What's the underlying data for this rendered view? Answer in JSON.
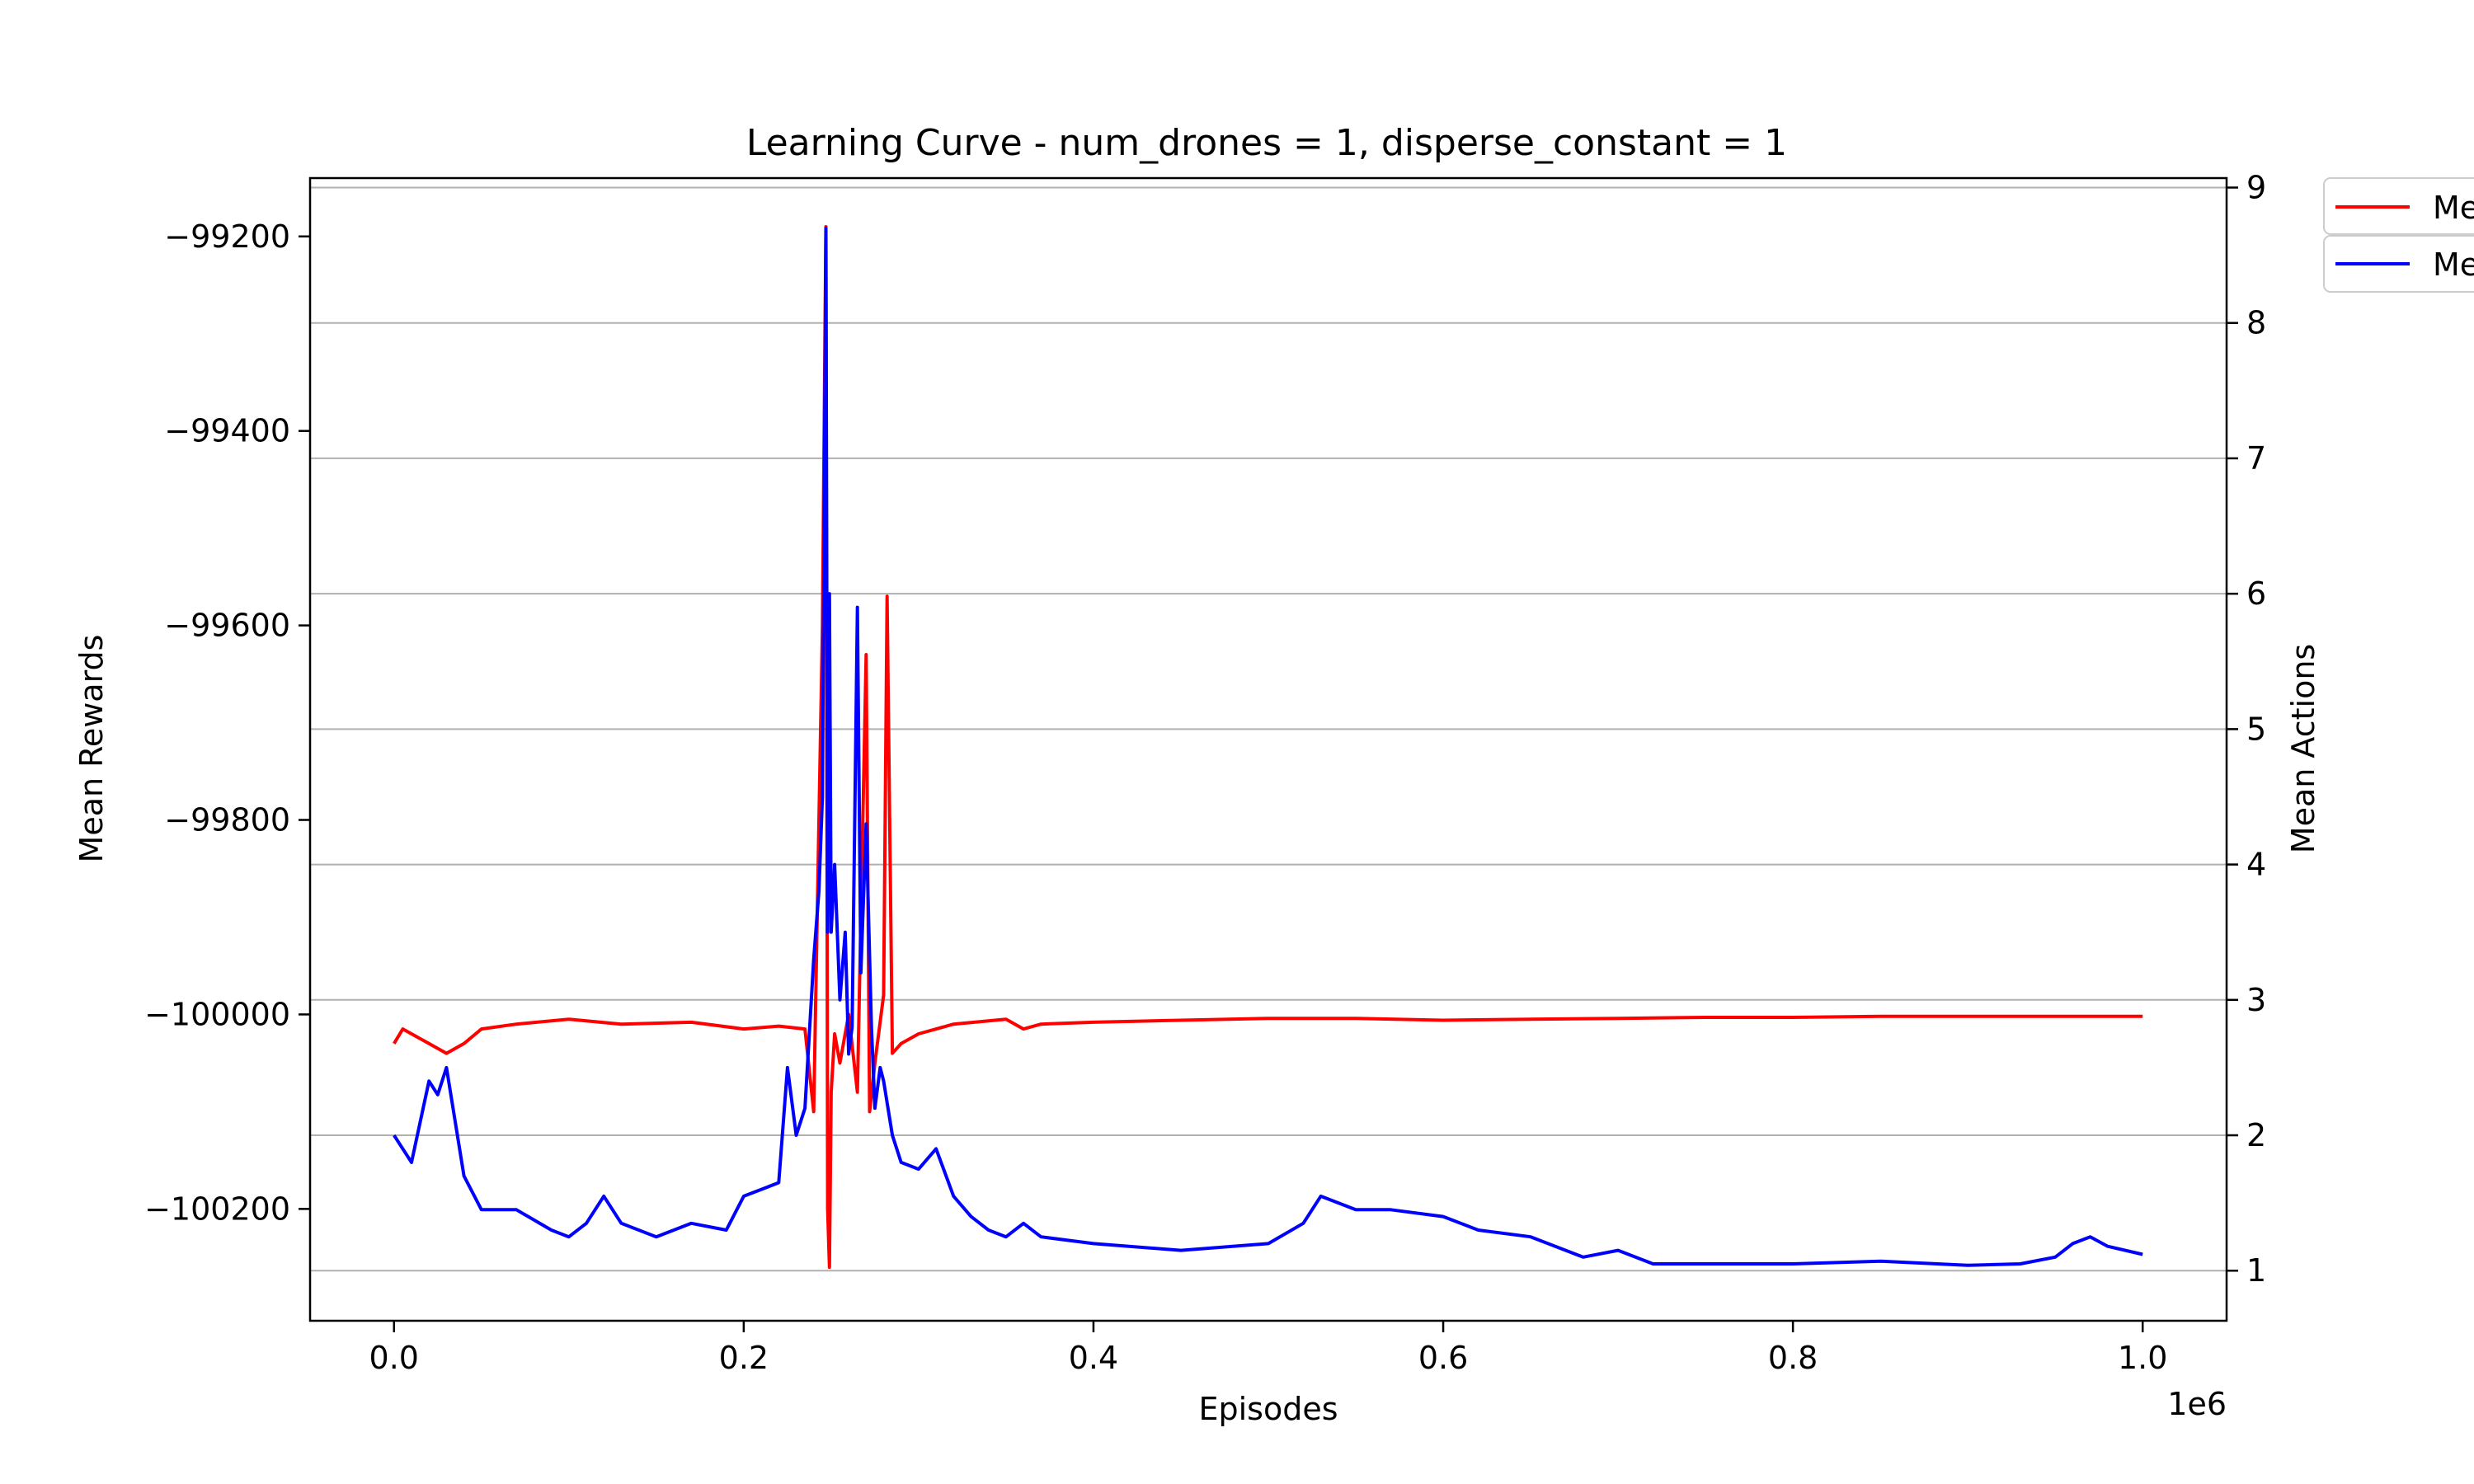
{
  "chart_data": {
    "type": "line",
    "title": "Learning Curve - num_drones = 1, disperse_constant = 1",
    "xlabel": "Episodes",
    "ylabel_left": "Mean Rewards",
    "ylabel_right": "Mean Actions",
    "x_offset_label": "1e6",
    "xlim": [
      -0.048,
      1.048
    ],
    "ylim_left": [
      -100315,
      -99140
    ],
    "ylim_right": [
      0.63,
      9.07
    ],
    "x_ticks": [
      0.0,
      0.2,
      0.4,
      0.6,
      0.8,
      1.0
    ],
    "x_tick_labels": [
      "0.0",
      "0.2",
      "0.4",
      "0.6",
      "0.8",
      "1.0"
    ],
    "y_left_ticks": [
      -99200,
      -99400,
      -99600,
      -99800,
      -100000,
      -100200
    ],
    "y_left_tick_labels": [
      "−99200",
      "−99400",
      "−99600",
      "−99800",
      "−100000",
      "−100200"
    ],
    "y_right_ticks": [
      1,
      2,
      3,
      4,
      5,
      6,
      7,
      8,
      9
    ],
    "y_right_tick_labels": [
      "1",
      "2",
      "3",
      "4",
      "5",
      "6",
      "7",
      "8",
      "9"
    ],
    "grid": "right-axis horizontal",
    "legend_placement": "upper-right outside",
    "legend_entries": [
      "Me",
      "Me"
    ],
    "series": [
      {
        "axis": "left",
        "color": "#ff0000",
        "x": [
          0.0,
          0.005,
          0.01,
          0.02,
          0.03,
          0.04,
          0.05,
          0.07,
          0.1,
          0.13,
          0.17,
          0.2,
          0.22,
          0.235,
          0.24,
          0.245,
          0.247,
          0.248,
          0.249,
          0.25,
          0.252,
          0.255,
          0.26,
          0.265,
          0.27,
          0.272,
          0.275,
          0.28,
          0.282,
          0.285,
          0.29,
          0.3,
          0.32,
          0.35,
          0.36,
          0.37,
          0.4,
          0.45,
          0.5,
          0.55,
          0.6,
          0.65,
          0.7,
          0.75,
          0.8,
          0.85,
          0.9,
          0.95,
          1.0
        ],
        "y": [
          -100030,
          -100015,
          -100020,
          -100030,
          -100040,
          -100030,
          -100015,
          -100010,
          -100005,
          -100010,
          -100008,
          -100015,
          -100012,
          -100015,
          -100100,
          -99600,
          -99190,
          -100200,
          -100260,
          -100080,
          -100020,
          -100050,
          -100000,
          -100080,
          -99630,
          -100100,
          -100050,
          -99980,
          -99570,
          -100040,
          -100030,
          -100020,
          -100010,
          -100005,
          -100015,
          -100010,
          -100008,
          -100006,
          -100004,
          -100004,
          -100006,
          -100005,
          -100004,
          -100003,
          -100003,
          -100002,
          -100002,
          -100002,
          -100002
        ]
      },
      {
        "axis": "right",
        "color": "#0000ff",
        "x": [
          0.0,
          0.005,
          0.01,
          0.015,
          0.02,
          0.025,
          0.03,
          0.035,
          0.04,
          0.05,
          0.07,
          0.09,
          0.1,
          0.11,
          0.12,
          0.13,
          0.15,
          0.17,
          0.19,
          0.2,
          0.21,
          0.22,
          0.225,
          0.23,
          0.235,
          0.24,
          0.243,
          0.245,
          0.247,
          0.248,
          0.249,
          0.25,
          0.252,
          0.255,
          0.258,
          0.26,
          0.262,
          0.265,
          0.267,
          0.27,
          0.273,
          0.275,
          0.278,
          0.28,
          0.285,
          0.29,
          0.3,
          0.31,
          0.32,
          0.33,
          0.34,
          0.35,
          0.36,
          0.37,
          0.4,
          0.45,
          0.5,
          0.52,
          0.53,
          0.55,
          0.57,
          0.6,
          0.62,
          0.65,
          0.68,
          0.7,
          0.72,
          0.75,
          0.8,
          0.85,
          0.9,
          0.93,
          0.95,
          0.96,
          0.97,
          0.98,
          1.0
        ],
        "y": [
          2.0,
          1.9,
          1.8,
          2.1,
          2.4,
          2.3,
          2.5,
          2.1,
          1.7,
          1.45,
          1.45,
          1.3,
          1.25,
          1.35,
          1.55,
          1.35,
          1.25,
          1.35,
          1.3,
          1.55,
          1.6,
          1.65,
          2.5,
          2.0,
          2.2,
          3.3,
          3.8,
          4.5,
          8.7,
          3.5,
          6.0,
          3.5,
          4.0,
          3.0,
          3.5,
          2.6,
          2.8,
          5.9,
          3.2,
          4.3,
          2.8,
          2.2,
          2.5,
          2.4,
          2.0,
          1.8,
          1.75,
          1.9,
          1.55,
          1.4,
          1.3,
          1.25,
          1.35,
          1.25,
          1.2,
          1.15,
          1.2,
          1.35,
          1.55,
          1.45,
          1.45,
          1.4,
          1.3,
          1.25,
          1.1,
          1.15,
          1.05,
          1.05,
          1.05,
          1.07,
          1.04,
          1.05,
          1.1,
          1.2,
          1.25,
          1.18,
          1.12
        ]
      }
    ]
  }
}
